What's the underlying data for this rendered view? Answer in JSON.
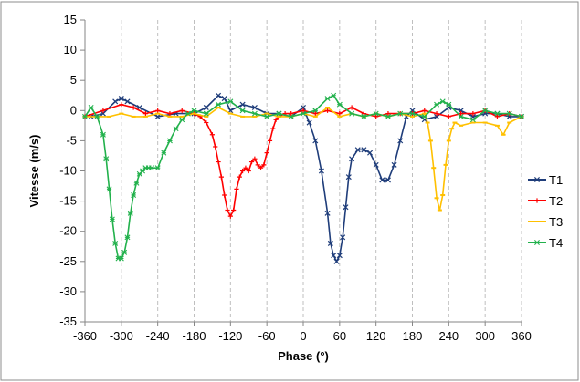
{
  "chart_data": {
    "type": "line",
    "xlabel": "Phase (°)",
    "ylabel": "Vitesse (m/s)",
    "xlim": [
      -360,
      360
    ],
    "ylim": [
      -35,
      15
    ],
    "xticks": [
      -360,
      -300,
      -240,
      -180,
      -120,
      -60,
      0,
      60,
      120,
      180,
      240,
      300,
      360
    ],
    "yticks": [
      15,
      10,
      5,
      0,
      -5,
      -10,
      -15,
      -20,
      -25,
      -30,
      -35
    ],
    "grid": "vertical dashed",
    "legend_position": "right",
    "series": [
      {
        "name": "T1",
        "color": "#1f3d7a",
        "marker": "x",
        "x": [
          -350,
          -330,
          -310,
          -300,
          -290,
          -270,
          -240,
          -210,
          -180,
          -160,
          -140,
          -130,
          -120,
          -100,
          -80,
          -60,
          -40,
          -20,
          0,
          10,
          20,
          30,
          40,
          45,
          50,
          55,
          60,
          65,
          70,
          75,
          80,
          90,
          100,
          110,
          120,
          130,
          140,
          150,
          160,
          170,
          180,
          200,
          220,
          240,
          260,
          280,
          300,
          320,
          340,
          360
        ],
        "y": [
          -1,
          -0.5,
          1.5,
          2,
          1.5,
          0.5,
          -1,
          -0.5,
          -0.5,
          0.5,
          2.5,
          2,
          0,
          1,
          0.5,
          -0.5,
          -0.5,
          -1,
          0.5,
          -2,
          -5,
          -10,
          -17,
          -22,
          -24,
          -25,
          -24,
          -21,
          -16,
          -11,
          -8,
          -6.5,
          -6.5,
          -7,
          -9,
          -11.5,
          -11.5,
          -9,
          -5,
          -1,
          0,
          -1.5,
          -1,
          0.5,
          0,
          -1,
          -0.5,
          -0.5,
          -1,
          -1
        ]
      },
      {
        "name": "T2",
        "color": "#ff0000",
        "marker": "+",
        "x": [
          -360,
          -330,
          -300,
          -280,
          -260,
          -240,
          -220,
          -200,
          -180,
          -170,
          -160,
          -150,
          -145,
          -140,
          -135,
          -130,
          -125,
          -120,
          -115,
          -110,
          -105,
          -100,
          -95,
          -90,
          -85,
          -80,
          -75,
          -70,
          -65,
          -60,
          -55,
          -50,
          -45,
          -40,
          -30,
          -20,
          0,
          20,
          40,
          60,
          80,
          100,
          120,
          140,
          160,
          180,
          200,
          220,
          240,
          260,
          280,
          300,
          320,
          340,
          360
        ],
        "y": [
          -1,
          0,
          1,
          0.5,
          -0.5,
          0,
          -0.5,
          0,
          -0.5,
          -1,
          -2,
          -4,
          -6,
          -8.5,
          -11,
          -14,
          -16.5,
          -17.5,
          -16.5,
          -13,
          -11,
          -10,
          -9.5,
          -10,
          -8.5,
          -8,
          -9,
          -9.5,
          -9,
          -7,
          -5,
          -3,
          -1.5,
          -1,
          -0.5,
          -0.5,
          0,
          -0.5,
          0,
          -0.5,
          0.5,
          -0.5,
          -1,
          -0.5,
          -0.5,
          -0.5,
          0,
          -0.5,
          -1,
          -0.5,
          -0.5,
          0,
          -1,
          -0.5,
          -1
        ]
      },
      {
        "name": "T3",
        "color": "#ffc000",
        "marker": "-",
        "x": [
          -360,
          -340,
          -320,
          -300,
          -280,
          -260,
          -240,
          -220,
          -200,
          -180,
          -160,
          -140,
          -120,
          -100,
          -80,
          -60,
          -40,
          -20,
          0,
          20,
          40,
          60,
          80,
          100,
          120,
          140,
          160,
          180,
          200,
          205,
          210,
          215,
          220,
          225,
          230,
          235,
          240,
          245,
          250,
          260,
          280,
          300,
          320,
          330,
          340,
          360
        ],
        "y": [
          -1,
          -1,
          -1,
          -0.5,
          -1,
          -1,
          -0.5,
          -1,
          -1,
          -0.5,
          -1,
          0.5,
          -0.5,
          -1,
          -1,
          -0.5,
          -1,
          -1,
          -0.5,
          -1,
          0.5,
          -1,
          -0.5,
          -1,
          -0.5,
          -1,
          -0.5,
          -1,
          -0.5,
          -2,
          -5,
          -9.5,
          -14.5,
          -16.5,
          -14,
          -9,
          -5,
          -3,
          -2,
          -2.5,
          -2,
          -2,
          -2.5,
          -4,
          -2,
          -1
        ]
      },
      {
        "name": "T4",
        "color": "#22b14c",
        "marker": "*",
        "x": [
          -360,
          -350,
          -340,
          -330,
          -325,
          -320,
          -315,
          -310,
          -305,
          -300,
          -295,
          -290,
          -285,
          -280,
          -275,
          -270,
          -265,
          -260,
          -255,
          -250,
          -240,
          -230,
          -220,
          -210,
          -200,
          -190,
          -180,
          -160,
          -140,
          -120,
          -100,
          -80,
          -60,
          -40,
          -20,
          0,
          20,
          40,
          50,
          60,
          80,
          100,
          120,
          140,
          160,
          180,
          200,
          220,
          230,
          240,
          260,
          280,
          300,
          320,
          340,
          360
        ],
        "y": [
          -1,
          0.5,
          -1,
          -4,
          -8,
          -13,
          -18,
          -22,
          -24.5,
          -24.5,
          -23.5,
          -21,
          -17,
          -14,
          -12,
          -10.5,
          -10,
          -9.5,
          -9.5,
          -9.5,
          -9.5,
          -7,
          -5,
          -3,
          -1.5,
          -0.5,
          0,
          -0.5,
          1,
          1.5,
          0,
          -0.5,
          -1,
          -0.5,
          -1,
          -0.5,
          0,
          2,
          2.5,
          1,
          -0.5,
          -1,
          -0.5,
          -1,
          -0.5,
          -0.5,
          -1,
          1,
          1.5,
          1,
          -1,
          -1.5,
          0,
          -0.5,
          -0.5,
          -1
        ]
      }
    ]
  }
}
